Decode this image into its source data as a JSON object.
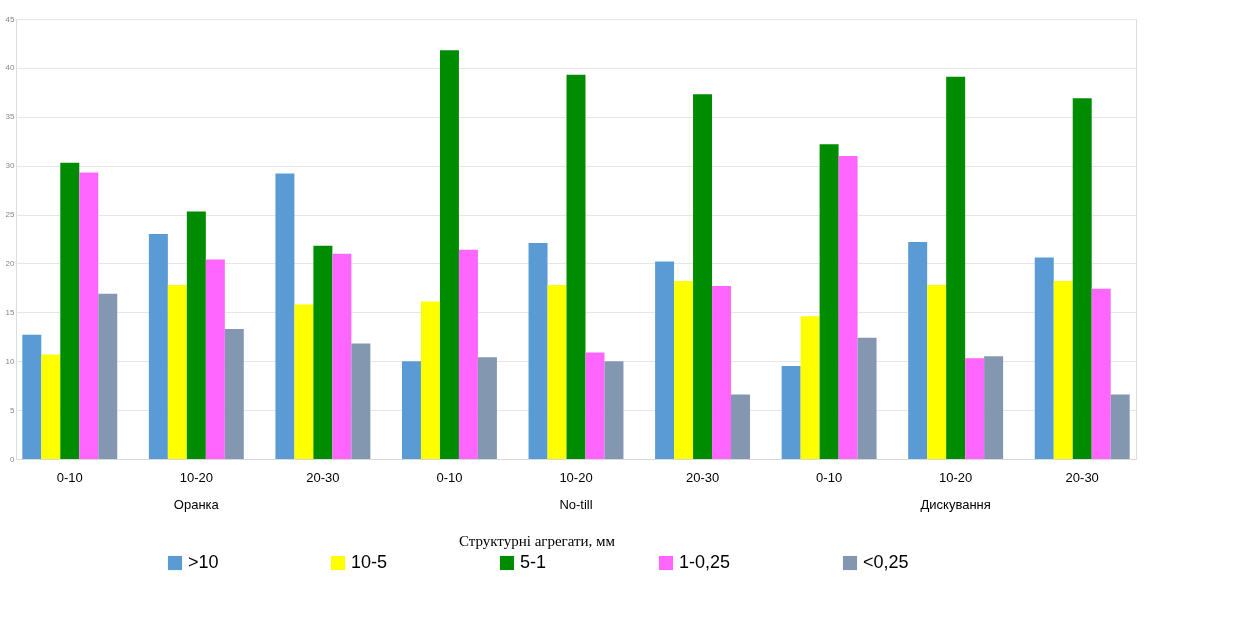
{
  "chart_data": {
    "type": "bar",
    "categories": [
      "0-10",
      "10-20",
      "20-30",
      "0-10",
      "10-20",
      "20-30",
      "0-10",
      "10-20",
      "20-30"
    ],
    "series": [
      {
        "name": ">10",
        "color": "#5b9bd5",
        "values": [
          12.7,
          23.0,
          29.2,
          10.0,
          22.1,
          20.2,
          9.5,
          22.2,
          20.6
        ]
      },
      {
        "name": "10-5",
        "color": "#ffff00",
        "values": [
          10.7,
          17.8,
          15.8,
          16.1,
          17.8,
          18.2,
          14.6,
          17.8,
          18.2
        ]
      },
      {
        "name": "5-1",
        "color": "#008c00",
        "values": [
          30.3,
          25.3,
          21.8,
          41.8,
          39.3,
          37.3,
          32.2,
          39.1,
          36.9
        ]
      },
      {
        "name": "1-0,25",
        "color": "#ff66ff",
        "values": [
          29.3,
          20.4,
          21.0,
          21.4,
          10.9,
          17.7,
          31.0,
          10.3,
          17.4
        ]
      },
      {
        "name": "<0,25",
        "color": "#8497b0",
        "values": [
          16.9,
          13.3,
          11.8,
          10.4,
          10.0,
          6.6,
          12.4,
          10.5,
          6.6
        ]
      }
    ],
    "annotations": [
      "Оранка",
      "No-till",
      "Дискування"
    ],
    "legend_title": "Структурні агрегати, мм",
    "ylim": [
      0,
      45
    ],
    "yticks": [
      0,
      5,
      10,
      15,
      20,
      25,
      30,
      35,
      40,
      45
    ],
    "grid": "y",
    "legend": "bottom"
  }
}
